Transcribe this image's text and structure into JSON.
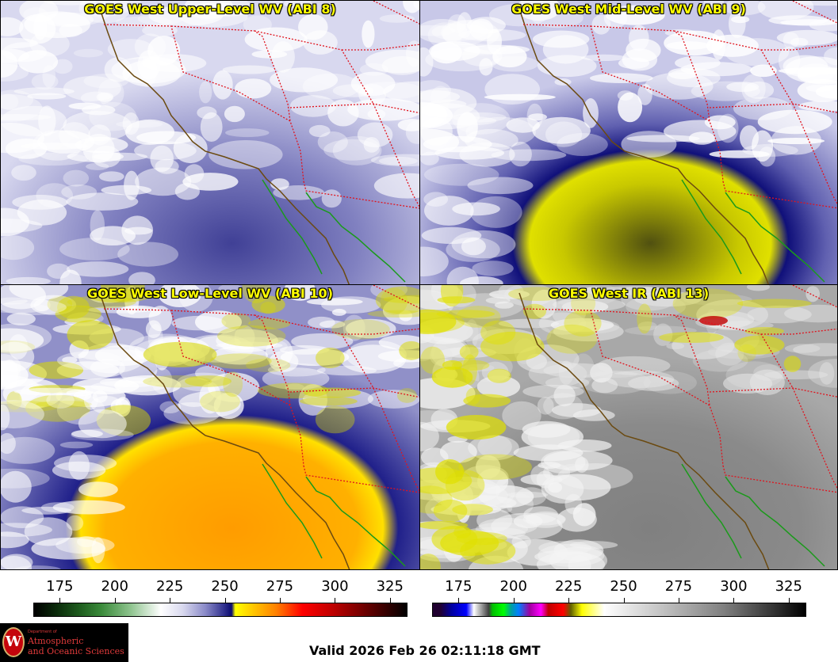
{
  "panels": [
    {
      "id": "ul",
      "title": "GOES West Upper-Level WV (ABI 8)",
      "palette": "wv",
      "scene": "upper"
    },
    {
      "id": "ml",
      "title": "GOES West Mid-Level WV (ABI 9)",
      "palette": "wv",
      "scene": "mid"
    },
    {
      "id": "ll",
      "title": "GOES West Low-Level WV (ABI 10)",
      "palette": "wv",
      "scene": "low"
    },
    {
      "id": "ir",
      "title": "GOES West IR (ABI 13)",
      "palette": "ir",
      "scene": "ir"
    }
  ],
  "colorbars": [
    {
      "id": "wv",
      "ticks": [
        175,
        200,
        225,
        250,
        275,
        300,
        325
      ],
      "min": 163,
      "max": 333
    },
    {
      "id": "ir",
      "ticks": [
        175,
        200,
        225,
        250,
        275,
        300,
        325
      ],
      "min": 163,
      "max": 333
    }
  ],
  "colors": {
    "state_border": "#e0141e",
    "coastline": "#6b4a10",
    "mexico_coast": "#1a9a1a",
    "title": "#ffff00"
  },
  "logo": {
    "dept": "Department of",
    "line1": "Atmospheric",
    "line2": "and Oceanic Sciences",
    "seal": "W"
  },
  "valid_text": "Valid 2026 Feb 26 02:11:18 GMT"
}
